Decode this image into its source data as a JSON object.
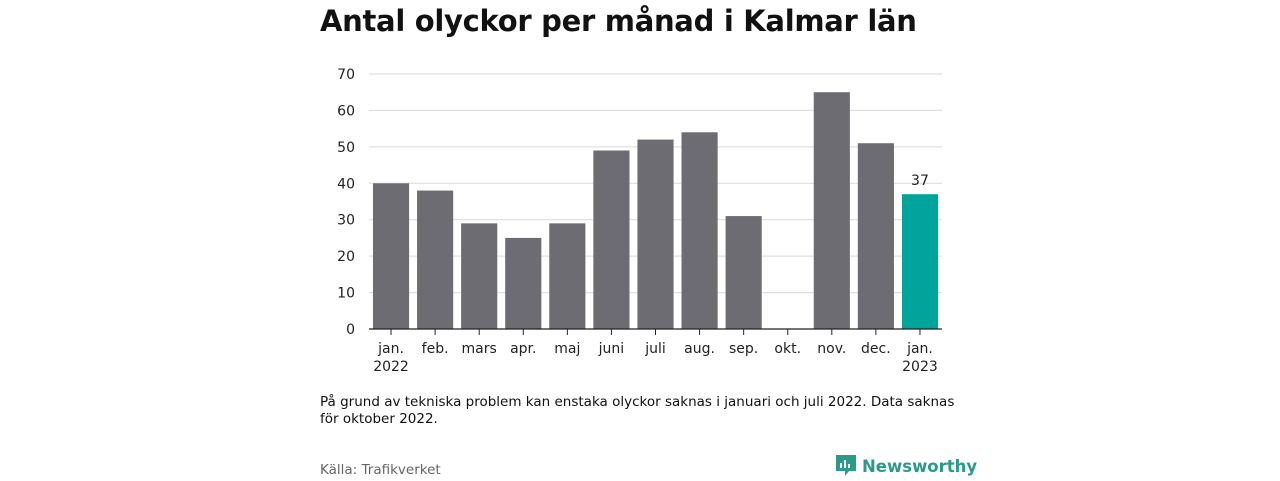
{
  "title": "Antal olyckor per månad i Kalmar län",
  "note": "På grund av tekniska problem kan enstaka olyckor saknas i januari och juli 2022. Data saknas för oktober 2022.",
  "source": "Källa: Trafikverket",
  "brand": {
    "name": "Newsworthy",
    "color": "#2a9a8a"
  },
  "chart_data": {
    "type": "bar",
    "title": "Antal olyckor per månad i Kalmar län",
    "categories": [
      "jan.\n2022",
      "feb.",
      "mars",
      "apr.",
      "maj",
      "juni",
      "juli",
      "aug.",
      "sep.",
      "okt.",
      "nov.",
      "dec.",
      "jan.\n2023"
    ],
    "values": [
      40,
      38,
      29,
      25,
      29,
      49,
      52,
      54,
      31,
      null,
      65,
      51,
      37
    ],
    "data_labels": [
      null,
      null,
      null,
      null,
      null,
      null,
      null,
      null,
      null,
      null,
      null,
      null,
      "37"
    ],
    "ylim": [
      0,
      70
    ],
    "yticks": [
      0,
      10,
      20,
      30,
      40,
      50,
      60,
      70
    ],
    "grid": true,
    "colors": {
      "default": "#6d6c72",
      "highlight": "#00a49a",
      "highlight_index": 12
    }
  }
}
